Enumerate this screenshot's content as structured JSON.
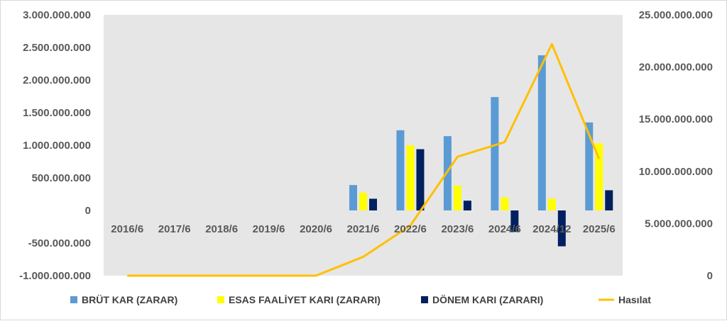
{
  "chart_data": {
    "type": "bar",
    "categories": [
      "2016/6",
      "2017/6",
      "2018/6",
      "2019/6",
      "2020/6",
      "2021/6",
      "2022/6",
      "2023/6",
      "2024/6",
      "2024/12",
      "2025/6"
    ],
    "series": [
      {
        "name": "BRÜT KAR (ZARAR)",
        "type": "bar",
        "axis": "left",
        "color": "#5b9bd5",
        "values": [
          0,
          0,
          0,
          0,
          0,
          390000000,
          1230000000,
          1140000000,
          1740000000,
          2380000000,
          1350000000
        ]
      },
      {
        "name": "ESAS FAALİYET KARI (ZARARI)",
        "type": "bar",
        "axis": "left",
        "color": "#ffff00",
        "values": [
          0,
          0,
          0,
          0,
          0,
          270000000,
          1000000000,
          380000000,
          200000000,
          180000000,
          1030000000
        ]
      },
      {
        "name": "DÖNEM KARI (ZARARI)",
        "type": "bar",
        "axis": "left",
        "color": "#002060",
        "values": [
          0,
          0,
          0,
          0,
          0,
          180000000,
          940000000,
          150000000,
          -330000000,
          -550000000,
          310000000
        ]
      },
      {
        "name": "Hasılat",
        "type": "line",
        "axis": "right",
        "color": "#ffc000",
        "values": [
          0,
          0,
          0,
          0,
          0,
          1800000000,
          4800000000,
          11400000000,
          12800000000,
          22200000000,
          11200000000
        ]
      }
    ],
    "y_left": {
      "ylim": [
        -1000000000,
        3000000000
      ],
      "ticks": [
        -1000000000,
        -500000000,
        0,
        500000000,
        1000000000,
        1500000000,
        2000000000,
        2500000000,
        3000000000
      ],
      "tick_labels": [
        "-1.000.000.000",
        "-500.000.000",
        "0",
        "500.000.000",
        "1.000.000.000",
        "1.500.000.000",
        "2.000.000.000",
        "2.500.000.000",
        "3.000.000.000"
      ]
    },
    "y_right": {
      "ylim": [
        0,
        25000000000
      ],
      "ticks": [
        0,
        5000000000,
        10000000000,
        15000000000,
        20000000000,
        25000000000
      ],
      "tick_labels": [
        "0",
        "5.000.000.000",
        "10.000.000.000",
        "15.000.000.000",
        "20.000.000.000",
        "25.000.000.000"
      ]
    },
    "grid": false,
    "plot_background": "#e7e6e6",
    "legend": "bottom"
  }
}
